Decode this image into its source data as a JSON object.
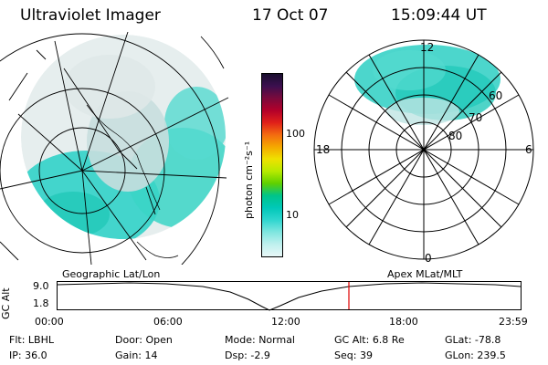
{
  "header": {
    "instrument": "Ultraviolet Imager",
    "date": "17 Oct 07",
    "time": "15:09:44 UT"
  },
  "colorbar": {
    "unit_label": "photon cm⁻²s⁻¹",
    "ticks": [
      "100",
      "10"
    ],
    "colors": [
      "#1a0f2f",
      "#3b0f4f",
      "#7a0a3c",
      "#b3002a",
      "#e0201a",
      "#f36b10",
      "#f5a800",
      "#efe100",
      "#b7ea00",
      "#5fd000",
      "#00c48a",
      "#00c8b8",
      "#2fd6cf",
      "#7fe6e0",
      "#bff0ee",
      "#e8f7f7"
    ]
  },
  "polar_plot": {
    "mlt_labels": [
      "12",
      "18",
      "6",
      "0"
    ],
    "mlat_labels": [
      "60",
      "70",
      "80"
    ]
  },
  "captions": {
    "left": "Geographic Lat/Lon",
    "right": "Apex MLat/MLT"
  },
  "timeline": {
    "ylabel": "GC Alt",
    "y_ticks": [
      "9.0",
      "1.8"
    ],
    "x_ticks": [
      "00:00",
      "06:00",
      "12:00",
      "18:00",
      "23:59"
    ],
    "accent_color": "#e00000"
  },
  "status": {
    "row1": [
      {
        "label": "Flt:",
        "value": "LBHL"
      },
      {
        "label": "Door:",
        "value": "Open"
      },
      {
        "label": "Mode:",
        "value": "Normal"
      },
      {
        "label": "GC Alt:",
        "value": "6.8 Re"
      },
      {
        "label": "GLat:",
        "value": "-78.8"
      }
    ],
    "row2": [
      {
        "label": "IP:",
        "value": "36.0"
      },
      {
        "label": "Gain:",
        "value": "14"
      },
      {
        "label": "Dsp:",
        "value": "-2.9"
      },
      {
        "label": "Seq:",
        "value": "39"
      },
      {
        "label": "GLon:",
        "value": "239.5"
      }
    ]
  }
}
